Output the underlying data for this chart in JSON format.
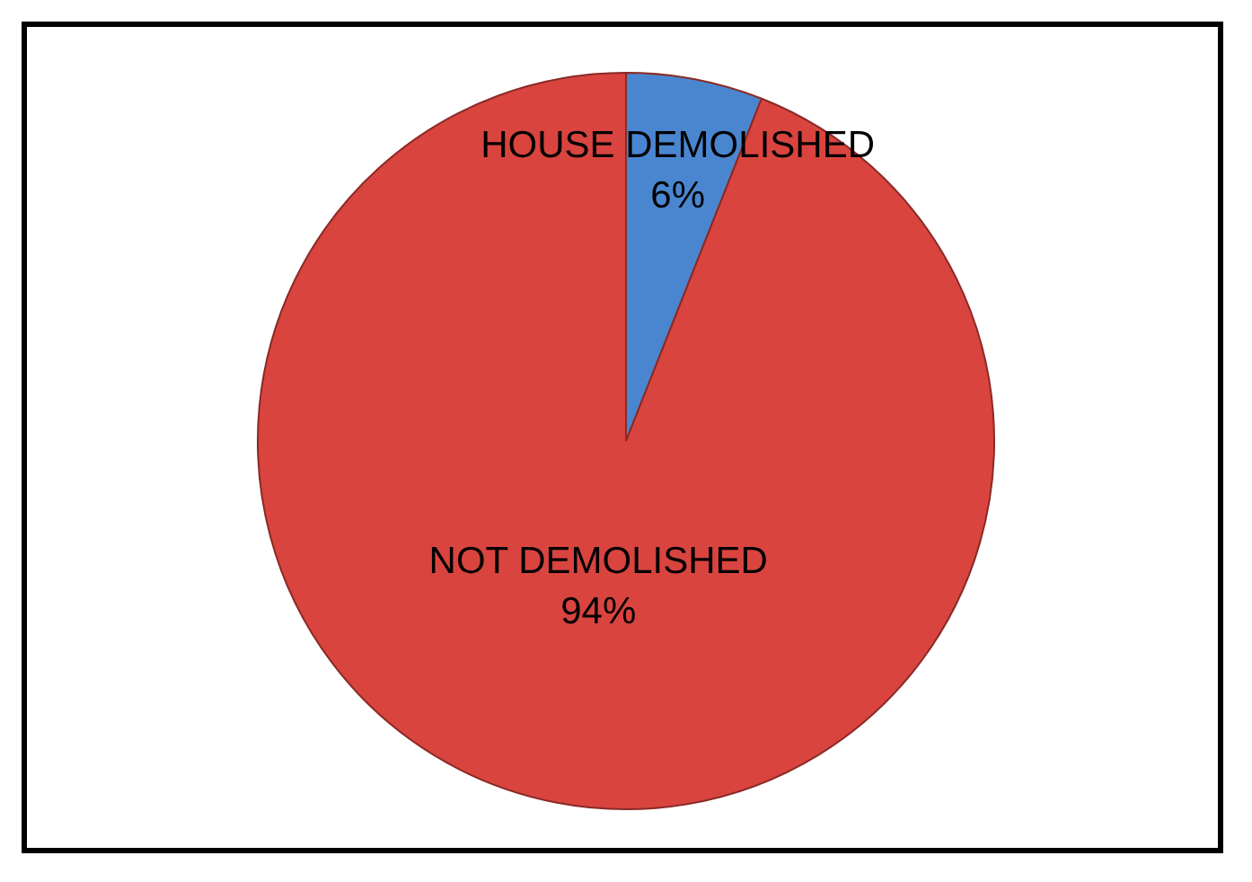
{
  "chart_data": {
    "type": "pie",
    "categories": [
      "HOUSE DEMOLISHED",
      "NOT DEMOLISHED"
    ],
    "values": [
      6,
      94
    ],
    "colors": [
      "#4a86d0",
      "#d9443f"
    ],
    "value_labels": [
      "6%",
      "94%"
    ],
    "legend": false
  }
}
